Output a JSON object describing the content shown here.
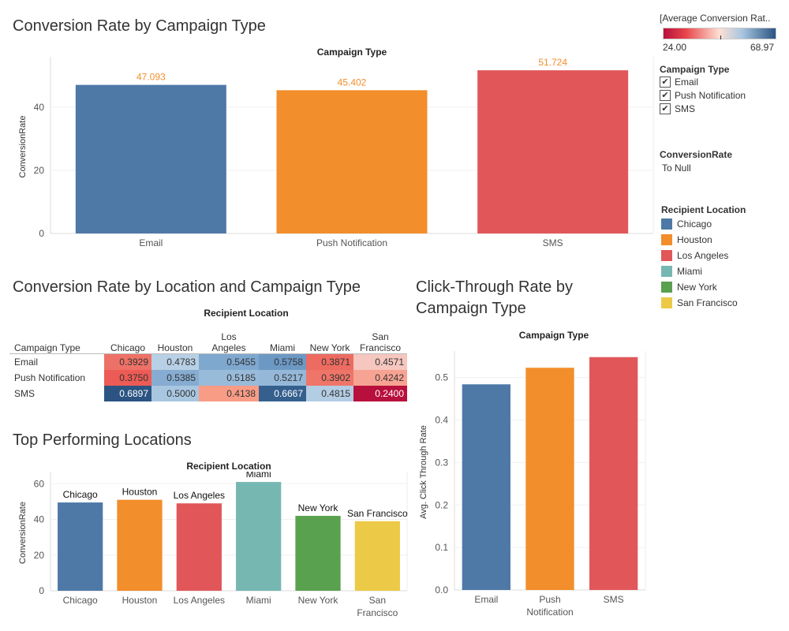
{
  "titles": {
    "chart1": "Conversion Rate by Campaign Type",
    "heatmap": "Conversion Rate by Location and Campaign Type",
    "ctr": "Click-Through Rate by Campaign Type",
    "top": "Top Performing Locations"
  },
  "legend": {
    "gradient_title": "[Average Conversion Rat..",
    "gradient_min": "24.00",
    "gradient_max": "68.97",
    "campaign_title": "Campaign Type",
    "campaign_items": [
      "Email",
      "Push Notification",
      "SMS"
    ],
    "conv_title": "ConversionRate",
    "conv_value": "To Null",
    "location_title": "Recipient Location",
    "location_items": [
      {
        "label": "Chicago",
        "color": "#4e79a7"
      },
      {
        "label": "Houston",
        "color": "#f28e2b"
      },
      {
        "label": "Los Angeles",
        "color": "#e15759"
      },
      {
        "label": "Miami",
        "color": "#76b7b2"
      },
      {
        "label": "New York",
        "color": "#59a14f"
      },
      {
        "label": "San Francisco",
        "color": "#edc948"
      }
    ]
  },
  "heatmap": {
    "header_title": "Recipient Location",
    "row_header": "Campaign Type",
    "columns": [
      "Chicago",
      "Houston",
      "Los Angeles",
      "Miami",
      "New York",
      "San Francisco"
    ],
    "rows": [
      {
        "label": "Email",
        "values": [
          "0.3929",
          "0.4783",
          "0.5455",
          "0.5758",
          "0.3871",
          "0.4571"
        ]
      },
      {
        "label": "Push Notification",
        "values": [
          "0.3750",
          "0.5385",
          "0.5185",
          "0.5217",
          "0.3902",
          "0.4242"
        ]
      },
      {
        "label": "SMS",
        "values": [
          "0.6897",
          "0.5000",
          "0.4138",
          "0.6667",
          "0.4815",
          "0.2400"
        ]
      }
    ]
  },
  "chart_data": [
    {
      "type": "bar",
      "title": "Conversion Rate by Campaign Type",
      "header": "Campaign Type",
      "categories": [
        "Email",
        "Push Notification",
        "SMS"
      ],
      "values": [
        47.093,
        45.402,
        51.724
      ],
      "labels": [
        "47.093",
        "45.402",
        "51.724"
      ],
      "colors": [
        "#4e79a7",
        "#f28e2b",
        "#e15759"
      ],
      "label_color": "#f28e2b",
      "ylabel": "ConversionRate",
      "yticks": [
        0,
        20,
        40
      ],
      "ylim": [
        0,
        55
      ]
    },
    {
      "type": "bar",
      "title": "Click-Through Rate by Campaign Type",
      "header": "Campaign Type",
      "categories": [
        "Email",
        "Push Notification",
        "SMS"
      ],
      "values": [
        0.484,
        0.523,
        0.548
      ],
      "colors": [
        "#4e79a7",
        "#f28e2b",
        "#e15759"
      ],
      "ylabel": "Avg. Click Through Rate",
      "yticks": [
        "0.0",
        "0.1",
        "0.2",
        "0.3",
        "0.4",
        "0.5"
      ],
      "ylim": [
        0,
        0.555
      ]
    },
    {
      "type": "bar",
      "title": "Top Performing Locations",
      "header": "Recipient Location",
      "categories": [
        "Chicago",
        "Houston",
        "Los Angeles",
        "Miami",
        "New York",
        "San Francisco"
      ],
      "values": [
        49.5,
        51,
        49,
        61,
        42,
        39
      ],
      "colors": [
        "#4e79a7",
        "#f28e2b",
        "#e15759",
        "#76b7b2",
        "#59a14f",
        "#edc948"
      ],
      "ylabel": "ConversionRate",
      "yticks": [
        0,
        20,
        40,
        60
      ],
      "ylim": [
        0,
        65
      ]
    },
    {
      "type": "heatmap",
      "title": "Conversion Rate by Location and Campaign Type",
      "columns": [
        "Chicago",
        "Houston",
        "Los Angeles",
        "Miami",
        "New York",
        "San Francisco"
      ],
      "rows": [
        "Email",
        "Push Notification",
        "SMS"
      ],
      "values": [
        [
          0.3929,
          0.4783,
          0.5455,
          0.5758,
          0.3871,
          0.4571
        ],
        [
          0.375,
          0.5385,
          0.5185,
          0.5217,
          0.3902,
          0.4242
        ],
        [
          0.6897,
          0.5,
          0.4138,
          0.6667,
          0.4815,
          0.24
        ]
      ],
      "color_range": [
        24.0,
        68.97
      ]
    }
  ]
}
